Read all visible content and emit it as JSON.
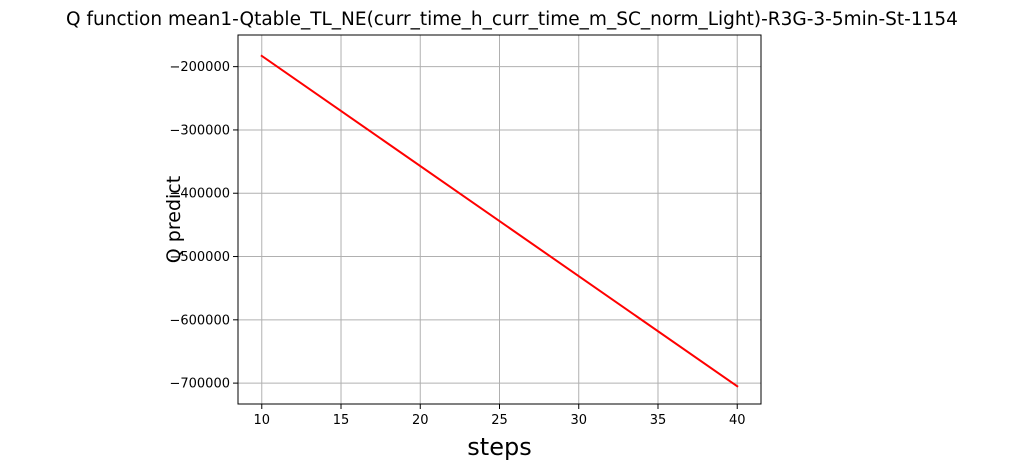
{
  "chart_data": {
    "type": "line",
    "title": "Q function mean1-Qtable_TL_NE(curr_time_h_curr_time_m_SC_norm_Light)-R3G-3-5min-St-1154",
    "xlabel": "steps",
    "ylabel": "Q predict",
    "xlim": [
      8.5,
      41.5
    ],
    "ylim": [
      -733000,
      -150000
    ],
    "xticks": [
      10,
      15,
      20,
      25,
      30,
      35,
      40
    ],
    "xtick_labels": [
      "10",
      "15",
      "20",
      "25",
      "30",
      "35",
      "40"
    ],
    "yticks": [
      -200000,
      -300000,
      -400000,
      -500000,
      -600000,
      -700000
    ],
    "ytick_labels": [
      "−200000",
      "−300000",
      "−400000",
      "−500000",
      "−600000",
      "−700000"
    ],
    "grid": true,
    "series": [
      {
        "color": "#ff0000",
        "x": [
          10,
          40
        ],
        "y": [
          -183000,
          -705000
        ]
      }
    ]
  },
  "colors": {
    "line": "#ff0000",
    "grid": "#b0b0b0",
    "axes": "#000000"
  }
}
